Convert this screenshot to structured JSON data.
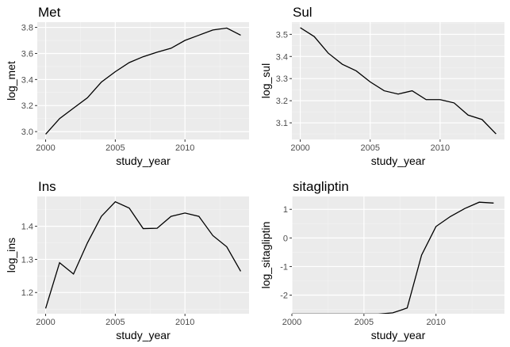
{
  "chart_data": [
    {
      "type": "line",
      "title": "Met",
      "xlabel": "study_year",
      "ylabel": "log_met",
      "xlim": [
        1999.4,
        2014.6
      ],
      "ylim": [
        2.94,
        3.84
      ],
      "xticks": [
        2000,
        2005,
        2010
      ],
      "xtick_labels": [
        "2000",
        "2005",
        "2010"
      ],
      "yticks": [
        3.0,
        3.2,
        3.4,
        3.6,
        3.8
      ],
      "ytick_labels": [
        "3.0",
        "3.2",
        "3.4",
        "3.6",
        "3.8"
      ],
      "grid": true,
      "x": [
        2000,
        2001,
        2002,
        2003,
        2004,
        2005,
        2006,
        2007,
        2008,
        2009,
        2010,
        2011,
        2012,
        2013,
        2014
      ],
      "values": [
        2.98,
        3.1,
        3.18,
        3.26,
        3.38,
        3.46,
        3.53,
        3.575,
        3.61,
        3.64,
        3.7,
        3.74,
        3.78,
        3.795,
        3.74
      ]
    },
    {
      "type": "line",
      "title": "Sul",
      "xlabel": "study_year",
      "ylabel": "log_sul",
      "xlim": [
        1999.4,
        2014.6
      ],
      "ylim": [
        3.025,
        3.555
      ],
      "xticks": [
        2000,
        2005,
        2010
      ],
      "xtick_labels": [
        "2000",
        "2005",
        "2010"
      ],
      "yticks": [
        3.1,
        3.2,
        3.3,
        3.4,
        3.5
      ],
      "ytick_labels": [
        "3.1",
        "3.2",
        "3.3",
        "3.4",
        "3.5"
      ],
      "grid": true,
      "x": [
        2000,
        2001,
        2002,
        2003,
        2004,
        2005,
        2006,
        2007,
        2008,
        2009,
        2010,
        2011,
        2012,
        2013,
        2014
      ],
      "values": [
        3.53,
        3.49,
        3.415,
        3.365,
        3.335,
        3.285,
        3.245,
        3.23,
        3.245,
        3.205,
        3.205,
        3.19,
        3.135,
        3.115,
        3.05
      ]
    },
    {
      "type": "line",
      "title": "Ins",
      "xlabel": "study_year",
      "ylabel": "log_ins",
      "xlim": [
        1999.4,
        2014.6
      ],
      "ylim": [
        1.136,
        1.49
      ],
      "xticks": [
        2000,
        2005,
        2010
      ],
      "xtick_labels": [
        "2000",
        "2005",
        "2010"
      ],
      "yticks": [
        1.2,
        1.3,
        1.4
      ],
      "ytick_labels": [
        "1.2",
        "1.3",
        "1.4"
      ],
      "grid": true,
      "x": [
        2000,
        2001,
        2002,
        2003,
        2004,
        2005,
        2006,
        2007,
        2008,
        2009,
        2010,
        2011,
        2012,
        2013,
        2014
      ],
      "values": [
        1.152,
        1.29,
        1.256,
        1.35,
        1.43,
        1.474,
        1.455,
        1.393,
        1.394,
        1.43,
        1.44,
        1.43,
        1.372,
        1.338,
        1.264
      ]
    },
    {
      "type": "line",
      "title": "sitagliptin",
      "xlabel": "study_year",
      "ylabel": "log_sitagliptin",
      "xlim": [
        2000,
        2014.75
      ],
      "ylim": [
        -2.65,
        1.45
      ],
      "xticks": [
        2000,
        2005,
        2010
      ],
      "xtick_labels": [
        "2000",
        "2005",
        "2010"
      ],
      "yticks": [
        -2,
        -1,
        0,
        1
      ],
      "ytick_labels": [
        "-2",
        "-1",
        "0",
        "1"
      ],
      "grid": true,
      "x": [
        2000,
        2001,
        2002,
        2003,
        2004,
        2005,
        2006,
        2007,
        2008,
        2009,
        2010,
        2011,
        2012,
        2013,
        2014
      ],
      "values": [
        -2.66,
        -2.66,
        -2.66,
        -2.66,
        -2.66,
        -2.66,
        -2.66,
        -2.62,
        -2.45,
        -0.6,
        0.4,
        0.75,
        1.03,
        1.25,
        1.22
      ]
    }
  ]
}
